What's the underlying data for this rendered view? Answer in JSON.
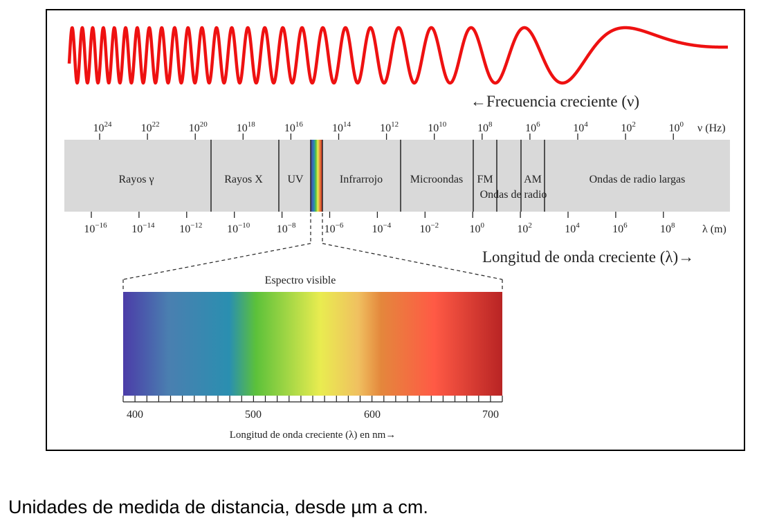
{
  "frequency_label": "←Frecuencia creciente (ν)",
  "wavelength_label": "Longitud de onda creciente (λ)→",
  "frequency_axis": {
    "unit": "ν (Hz)",
    "ticks": [
      {
        "base": "10",
        "exp": "24"
      },
      {
        "base": "10",
        "exp": "22"
      },
      {
        "base": "10",
        "exp": "20"
      },
      {
        "base": "10",
        "exp": "18"
      },
      {
        "base": "10",
        "exp": "16"
      },
      {
        "base": "10",
        "exp": "14"
      },
      {
        "base": "10",
        "exp": "12"
      },
      {
        "base": "10",
        "exp": "10"
      },
      {
        "base": "10",
        "exp": "8"
      },
      {
        "base": "10",
        "exp": "6"
      },
      {
        "base": "10",
        "exp": "4"
      },
      {
        "base": "10",
        "exp": "2"
      },
      {
        "base": "10",
        "exp": "0"
      }
    ]
  },
  "wavelength_axis": {
    "unit": "λ (m)",
    "ticks": [
      {
        "base": "10",
        "exp": "−16"
      },
      {
        "base": "10",
        "exp": "−14"
      },
      {
        "base": "10",
        "exp": "−12"
      },
      {
        "base": "10",
        "exp": "−10"
      },
      {
        "base": "10",
        "exp": "−8"
      },
      {
        "base": "10",
        "exp": "−6"
      },
      {
        "base": "10",
        "exp": "−4"
      },
      {
        "base": "10",
        "exp": "−2"
      },
      {
        "base": "10",
        "exp": "0"
      },
      {
        "base": "10",
        "exp": "2"
      },
      {
        "base": "10",
        "exp": "4"
      },
      {
        "base": "10",
        "exp": "6"
      },
      {
        "base": "10",
        "exp": "8"
      }
    ]
  },
  "bands": {
    "gamma": "Rayos γ",
    "xray": "Rayos X",
    "uv": "UV",
    "infrared": "Infrarrojo",
    "microwave": "Microondas",
    "fm": "FM",
    "am": "AM",
    "radio_waves": "Ondas de radio",
    "long_radio": "Ondas de radio largas"
  },
  "visible": {
    "title": "Espectro visible",
    "ticks": [
      "400",
      "500",
      "600",
      "700"
    ],
    "axis_label": "Longitud de onda creciente (λ) en nm→"
  },
  "colors": {
    "wave": "#ee1111",
    "band_bg": "#d9d9d9",
    "spectrum": [
      "#4b3ca8",
      "#4a7fb0",
      "#2a8fb0",
      "#5cc13a",
      "#e9ec50",
      "#f0c060",
      "#e4873c",
      "#ff5a45",
      "#b82424"
    ]
  },
  "caption": "Unidades de medida de distancia, desde µm a cm."
}
